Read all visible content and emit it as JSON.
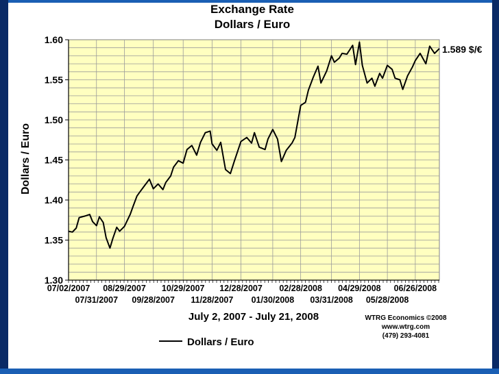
{
  "chart_data": {
    "type": "line",
    "title": "Exchange Rate",
    "subtitle": "Dollars / Euro",
    "xlabel": "July 2, 2007 - July 21, 2008",
    "ylabel": "Dollars / Euro",
    "ylim": [
      1.3,
      1.6
    ],
    "yticks": [
      "1.30",
      "1.35",
      "1.40",
      "1.45",
      "1.50",
      "1.55",
      "1.60"
    ],
    "xtick_labels_top": [
      "07/02/2007",
      "08/29/2007",
      "10/29/2007",
      "12/28/2007",
      "02/28/2008",
      "04/29/2008",
      "06/26/2008"
    ],
    "xtick_labels_bottom": [
      "07/31/2007",
      "09/28/2007",
      "11/28/2007",
      "01/30/2008",
      "03/31/2008",
      "05/28/2008"
    ],
    "grid": true,
    "background": "#ffffc0",
    "end_label": "1.589 $/€",
    "series": [
      {
        "name": "Dollars / Euro",
        "color": "#000000",
        "x": [
          "2007-07-02",
          "2007-07-06",
          "2007-07-10",
          "2007-07-13",
          "2007-07-19",
          "2007-07-24",
          "2007-07-27",
          "2007-07-31",
          "2007-08-03",
          "2007-08-07",
          "2007-08-10",
          "2007-08-14",
          "2007-08-17",
          "2007-08-21",
          "2007-08-24",
          "2007-08-29",
          "2007-09-04",
          "2007-09-07",
          "2007-09-11",
          "2007-09-14",
          "2007-09-19",
          "2007-09-24",
          "2007-09-28",
          "2007-10-03",
          "2007-10-08",
          "2007-10-11",
          "2007-10-16",
          "2007-10-19",
          "2007-10-24",
          "2007-10-29",
          "2007-11-02",
          "2007-11-07",
          "2007-11-12",
          "2007-11-16",
          "2007-11-21",
          "2007-11-26",
          "2007-11-28",
          "2007-12-03",
          "2007-12-07",
          "2007-12-12",
          "2007-12-17",
          "2007-12-21",
          "2007-12-28",
          "2008-01-03",
          "2008-01-08",
          "2008-01-11",
          "2008-01-16",
          "2008-01-22",
          "2008-01-25",
          "2008-01-30",
          "2008-02-04",
          "2008-02-08",
          "2008-02-13",
          "2008-02-19",
          "2008-02-22",
          "2008-02-28",
          "2008-03-04",
          "2008-03-07",
          "2008-03-12",
          "2008-03-17",
          "2008-03-20",
          "2008-03-26",
          "2008-03-31",
          "2008-04-03",
          "2008-04-08",
          "2008-04-11",
          "2008-04-16",
          "2008-04-22",
          "2008-04-25",
          "2008-04-29",
          "2008-05-02",
          "2008-05-07",
          "2008-05-12",
          "2008-05-15",
          "2008-05-20",
          "2008-05-23",
          "2008-05-28",
          "2008-06-02",
          "2008-06-05",
          "2008-06-10",
          "2008-06-13",
          "2008-06-18",
          "2008-06-23",
          "2008-06-26",
          "2008-07-01",
          "2008-07-07",
          "2008-07-11",
          "2008-07-16",
          "2008-07-21"
        ],
        "values": [
          1.361,
          1.36,
          1.365,
          1.378,
          1.38,
          1.382,
          1.373,
          1.368,
          1.379,
          1.372,
          1.353,
          1.34,
          1.352,
          1.366,
          1.361,
          1.367,
          1.382,
          1.392,
          1.405,
          1.41,
          1.418,
          1.426,
          1.414,
          1.42,
          1.413,
          1.422,
          1.43,
          1.441,
          1.449,
          1.446,
          1.463,
          1.468,
          1.456,
          1.472,
          1.484,
          1.486,
          1.47,
          1.462,
          1.472,
          1.438,
          1.433,
          1.448,
          1.473,
          1.478,
          1.471,
          1.484,
          1.466,
          1.463,
          1.476,
          1.488,
          1.476,
          1.448,
          1.462,
          1.471,
          1.478,
          1.518,
          1.522,
          1.537,
          1.553,
          1.567,
          1.546,
          1.561,
          1.58,
          1.572,
          1.577,
          1.583,
          1.582,
          1.593,
          1.569,
          1.597,
          1.568,
          1.546,
          1.552,
          1.542,
          1.558,
          1.552,
          1.568,
          1.563,
          1.552,
          1.55,
          1.538,
          1.555,
          1.566,
          1.574,
          1.583,
          1.57,
          1.592,
          1.583,
          1.589
        ]
      }
    ]
  },
  "credits": {
    "line1": "WTRG Economics  ©2008",
    "line2": "www.wtrg.com",
    "line3": "(479) 293-4081"
  }
}
